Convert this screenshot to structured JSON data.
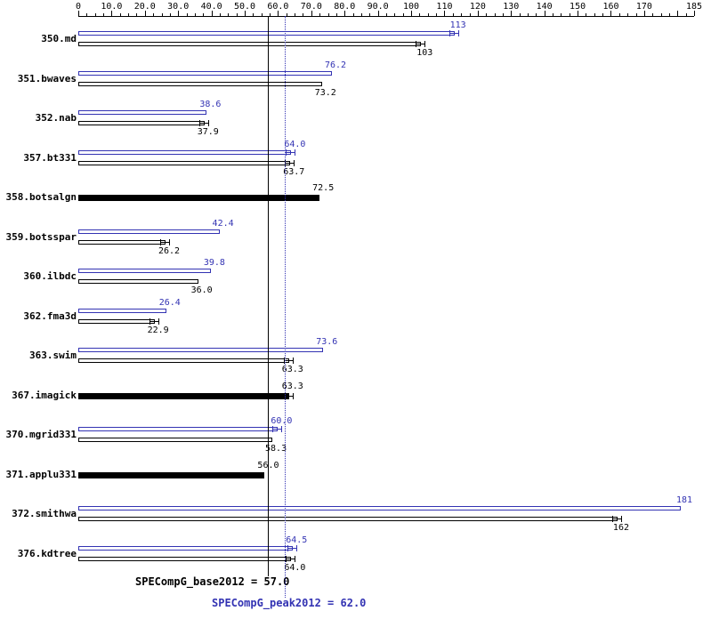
{
  "chart_data": {
    "type": "bar",
    "orientation": "horizontal",
    "title": "",
    "xlabel": "",
    "ylabel": "",
    "xlim": [
      0,
      185
    ],
    "grid": false,
    "legend_position": "bottom",
    "minor_tick_step": 2.5,
    "series_colors": {
      "peak": "#3333b3",
      "base": "#000000"
    },
    "axis_ticks": [
      {
        "value": 0,
        "label": "0"
      },
      {
        "value": 10,
        "label": "10.0"
      },
      {
        "value": 20,
        "label": "20.0"
      },
      {
        "value": 30,
        "label": "30.0"
      },
      {
        "value": 40,
        "label": "40.0"
      },
      {
        "value": 50,
        "label": "50.0"
      },
      {
        "value": 60,
        "label": "60.0"
      },
      {
        "value": 70,
        "label": "70.0"
      },
      {
        "value": 80,
        "label": "80.0"
      },
      {
        "value": 90,
        "label": "90.0"
      },
      {
        "value": 100,
        "label": "100"
      },
      {
        "value": 110,
        "label": "110"
      },
      {
        "value": 120,
        "label": "120"
      },
      {
        "value": 130,
        "label": "130"
      },
      {
        "value": 140,
        "label": "140"
      },
      {
        "value": 150,
        "label": "150"
      },
      {
        "value": 160,
        "label": "160"
      },
      {
        "value": 170,
        "label": "170"
      },
      {
        "value": 180,
        "label": ""
      },
      {
        "value": 185,
        "label": "185"
      }
    ],
    "reference_lines": [
      {
        "value": 57.0,
        "style": "solid",
        "color": "#000000",
        "label": "SPECompG_base2012 = 57.0"
      },
      {
        "value": 62.0,
        "style": "dotted",
        "color": "#3333b3",
        "label": "SPECompG_peak2012 = 62.0"
      }
    ],
    "benchmarks": [
      {
        "name": "350.md",
        "peak": {
          "value": 113,
          "label": "113",
          "whisker": true
        },
        "base": {
          "value": 103,
          "label": "103",
          "whisker": true
        }
      },
      {
        "name": "351.bwaves",
        "peak": {
          "value": 76.2,
          "label": "76.2",
          "whisker": false
        },
        "base": {
          "value": 73.2,
          "label": "73.2",
          "whisker": false
        }
      },
      {
        "name": "352.nab",
        "peak": {
          "value": 38.6,
          "label": "38.6",
          "whisker": false
        },
        "base": {
          "value": 37.9,
          "label": "37.9",
          "whisker": true
        }
      },
      {
        "name": "357.bt331",
        "peak": {
          "value": 64.0,
          "label": "64.0",
          "whisker": true
        },
        "base": {
          "value": 63.7,
          "label": "63.7",
          "whisker": true
        }
      },
      {
        "name": "358.botsalgn",
        "single": {
          "value": 72.5,
          "label": "72.5",
          "whisker": false
        }
      },
      {
        "name": "359.botsspar",
        "peak": {
          "value": 42.4,
          "label": "42.4",
          "whisker": false
        },
        "base": {
          "value": 26.2,
          "label": "26.2",
          "whisker": true
        }
      },
      {
        "name": "360.ilbdc",
        "peak": {
          "value": 39.8,
          "label": "39.8",
          "whisker": false
        },
        "base": {
          "value": 36.0,
          "label": "36.0",
          "whisker": false
        }
      },
      {
        "name": "362.fma3d",
        "peak": {
          "value": 26.4,
          "label": "26.4",
          "whisker": false
        },
        "base": {
          "value": 22.9,
          "label": "22.9",
          "whisker": true
        }
      },
      {
        "name": "363.swim",
        "peak": {
          "value": 73.6,
          "label": "73.6",
          "whisker": false
        },
        "base": {
          "value": 63.3,
          "label": "63.3",
          "whisker": true
        }
      },
      {
        "name": "367.imagick",
        "single": {
          "value": 63.3,
          "label": "63.3",
          "whisker": true
        }
      },
      {
        "name": "370.mgrid331",
        "peak": {
          "value": 60.0,
          "label": "60.0",
          "whisker": true
        },
        "base": {
          "value": 58.3,
          "label": "58.3",
          "whisker": false
        }
      },
      {
        "name": "371.applu331",
        "single": {
          "value": 56.0,
          "label": "56.0",
          "whisker": false
        }
      },
      {
        "name": "372.smithwa",
        "peak": {
          "value": 181,
          "label": "181",
          "whisker": false
        },
        "base": {
          "value": 162,
          "label": "162",
          "whisker": true
        }
      },
      {
        "name": "376.kdtree",
        "peak": {
          "value": 64.5,
          "label": "64.5",
          "whisker": true
        },
        "base": {
          "value": 64.0,
          "label": "64.0",
          "whisker": true
        }
      }
    ]
  }
}
